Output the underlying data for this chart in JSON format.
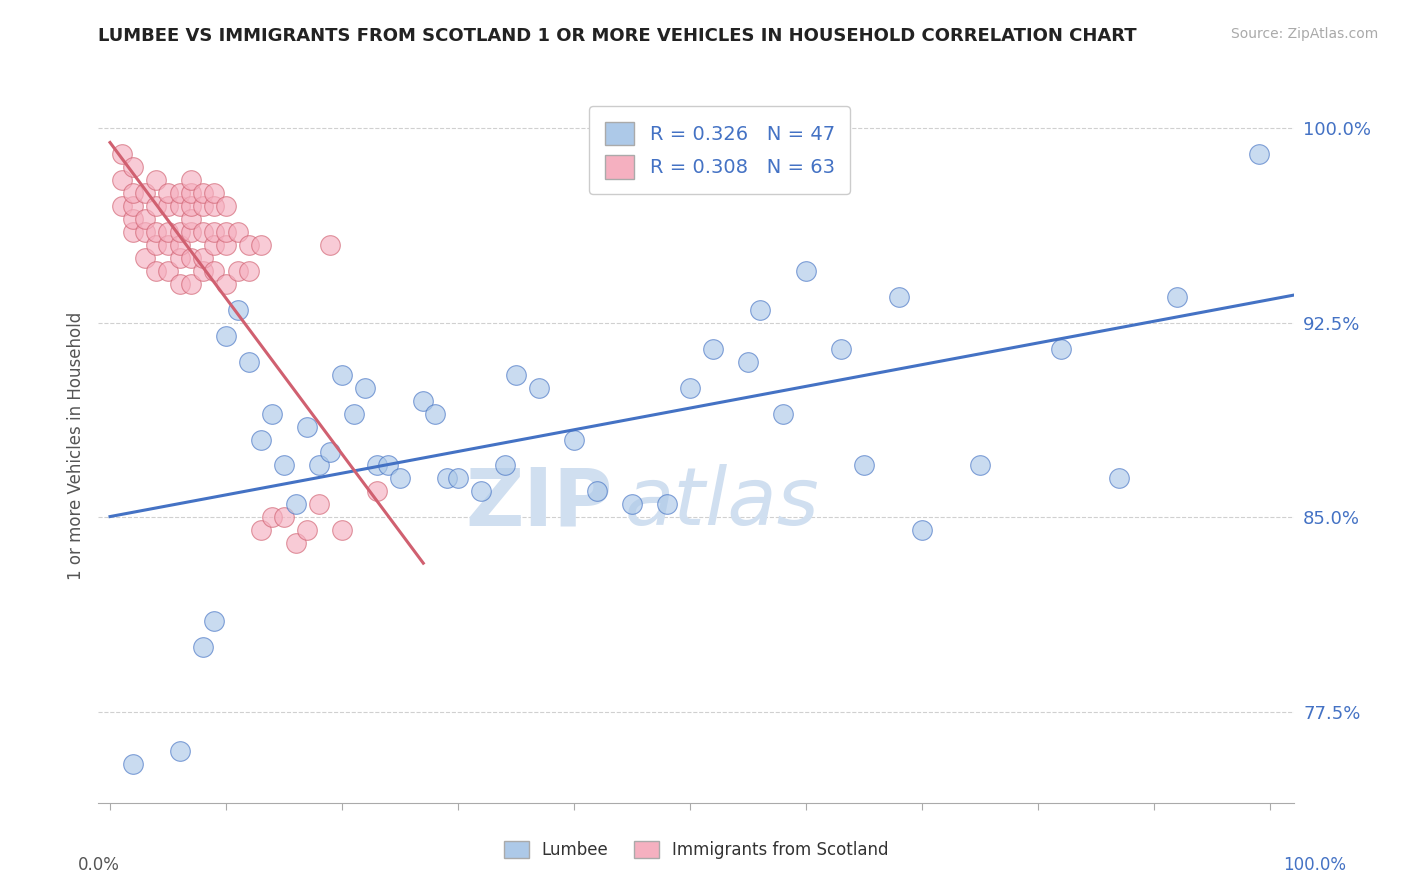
{
  "title": "LUMBEE VS IMMIGRANTS FROM SCOTLAND 1 OR MORE VEHICLES IN HOUSEHOLD CORRELATION CHART",
  "source": "Source: ZipAtlas.com",
  "ylabel": "1 or more Vehicles in Household",
  "ymin": 0.74,
  "ymax": 1.015,
  "xmin": -0.01,
  "xmax": 1.02,
  "yticks": [
    0.775,
    0.85,
    0.925,
    1.0
  ],
  "ytick_labels": [
    "77.5%",
    "85.0%",
    "92.5%",
    "100.0%"
  ],
  "legend_lumbee": "Lumbee",
  "legend_scotland": "Immigrants from Scotland",
  "r_lumbee": 0.326,
  "n_lumbee": 47,
  "r_scotland": 0.308,
  "n_scotland": 63,
  "color_lumbee": "#adc9e8",
  "color_scotland": "#f5b0c0",
  "trendline_lumbee": "#4472c4",
  "trendline_scotland": "#d06070",
  "watermark_zip": "ZIP",
  "watermark_atlas": "atlas",
  "watermark_color": "#d0dff0",
  "background_color": "#ffffff",
  "grid_color": "#d0d0d0",
  "title_color": "#222222",
  "lumbee_x": [
    0.02,
    0.06,
    0.08,
    0.09,
    0.1,
    0.11,
    0.12,
    0.13,
    0.14,
    0.15,
    0.16,
    0.17,
    0.18,
    0.19,
    0.2,
    0.21,
    0.22,
    0.23,
    0.24,
    0.25,
    0.27,
    0.28,
    0.29,
    0.3,
    0.32,
    0.34,
    0.35,
    0.37,
    0.4,
    0.42,
    0.45,
    0.48,
    0.5,
    0.52,
    0.55,
    0.56,
    0.58,
    0.6,
    0.63,
    0.65,
    0.68,
    0.7,
    0.75,
    0.82,
    0.87,
    0.92,
    0.99
  ],
  "lumbee_y": [
    0.755,
    0.76,
    0.8,
    0.81,
    0.92,
    0.93,
    0.91,
    0.88,
    0.89,
    0.87,
    0.855,
    0.885,
    0.87,
    0.875,
    0.905,
    0.89,
    0.9,
    0.87,
    0.87,
    0.865,
    0.895,
    0.89,
    0.865,
    0.865,
    0.86,
    0.87,
    0.905,
    0.9,
    0.88,
    0.86,
    0.855,
    0.855,
    0.9,
    0.915,
    0.91,
    0.93,
    0.89,
    0.945,
    0.915,
    0.87,
    0.935,
    0.845,
    0.87,
    0.915,
    0.865,
    0.935,
    0.99
  ],
  "scotland_x": [
    0.01,
    0.01,
    0.01,
    0.02,
    0.02,
    0.02,
    0.02,
    0.02,
    0.03,
    0.03,
    0.03,
    0.03,
    0.04,
    0.04,
    0.04,
    0.04,
    0.04,
    0.05,
    0.05,
    0.05,
    0.05,
    0.05,
    0.06,
    0.06,
    0.06,
    0.06,
    0.06,
    0.06,
    0.07,
    0.07,
    0.07,
    0.07,
    0.07,
    0.07,
    0.07,
    0.08,
    0.08,
    0.08,
    0.08,
    0.08,
    0.09,
    0.09,
    0.09,
    0.09,
    0.09,
    0.1,
    0.1,
    0.1,
    0.1,
    0.11,
    0.11,
    0.12,
    0.12,
    0.13,
    0.13,
    0.14,
    0.15,
    0.16,
    0.17,
    0.18,
    0.19,
    0.2,
    0.23
  ],
  "scotland_y": [
    0.97,
    0.98,
    0.99,
    0.96,
    0.965,
    0.97,
    0.975,
    0.985,
    0.95,
    0.96,
    0.965,
    0.975,
    0.945,
    0.955,
    0.96,
    0.97,
    0.98,
    0.945,
    0.955,
    0.96,
    0.97,
    0.975,
    0.94,
    0.95,
    0.955,
    0.96,
    0.97,
    0.975,
    0.94,
    0.95,
    0.96,
    0.965,
    0.97,
    0.975,
    0.98,
    0.945,
    0.95,
    0.96,
    0.97,
    0.975,
    0.945,
    0.955,
    0.96,
    0.97,
    0.975,
    0.94,
    0.955,
    0.96,
    0.97,
    0.945,
    0.96,
    0.945,
    0.955,
    0.845,
    0.955,
    0.85,
    0.85,
    0.84,
    0.845,
    0.855,
    0.955,
    0.845,
    0.86
  ]
}
